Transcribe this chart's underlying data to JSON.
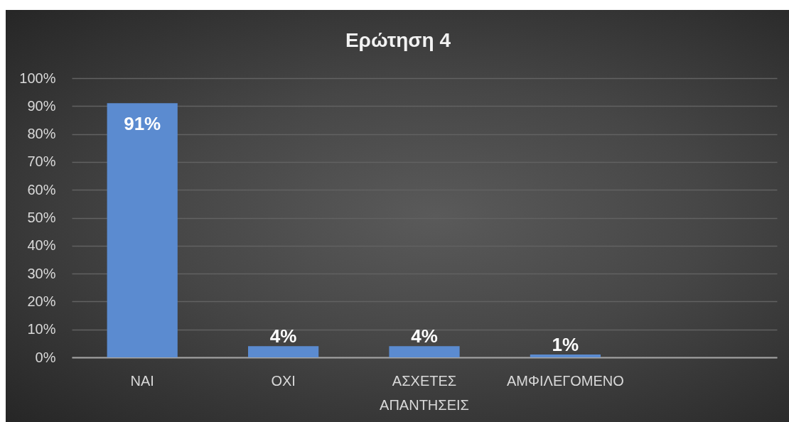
{
  "chart_data": {
    "type": "bar",
    "title": "Ερώτηση 4",
    "categories": [
      "ΝΑΙ",
      "ΟΧΙ",
      "ΑΣΧΕΤΕΣ ΑΠΑΝΤΗΣΕΙΣ",
      "ΑΜΦΙΛΕΓΟΜΕΝΟ",
      null
    ],
    "values": [
      91,
      4,
      4,
      1,
      null
    ],
    "value_labels": [
      "91%",
      "4%",
      "4%",
      "1%",
      null
    ],
    "color": "#5b8bd0",
    "ylim": [
      0,
      100
    ],
    "yticks": [
      {
        "value": 0,
        "label": "0%"
      },
      {
        "value": 10,
        "label": "10%"
      },
      {
        "value": 20,
        "label": "20%"
      },
      {
        "value": 30,
        "label": "30%"
      },
      {
        "value": 40,
        "label": "40%"
      },
      {
        "value": 50,
        "label": "50%"
      },
      {
        "value": 60,
        "label": "60%"
      },
      {
        "value": 70,
        "label": "70%"
      },
      {
        "value": 80,
        "label": "80%"
      },
      {
        "value": 90,
        "label": "90%"
      },
      {
        "value": 100,
        "label": "100%"
      }
    ],
    "grid": "y"
  }
}
